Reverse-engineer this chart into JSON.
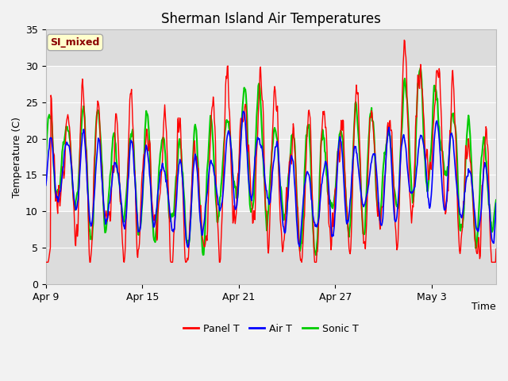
{
  "title": "Sherman Island Air Temperatures",
  "xlabel": "Time",
  "ylabel": "Temperature (C)",
  "annotation": "SI_mixed",
  "annotation_color": "#8B0000",
  "annotation_bg": "#FFFFCC",
  "annotation_border": "#AAAAAA",
  "ylim": [
    0,
    35
  ],
  "yticks": [
    0,
    5,
    10,
    15,
    20,
    25,
    30,
    35
  ],
  "xtick_labels": [
    "Apr 9",
    "Apr 15",
    "Apr 21",
    "Apr 27",
    "May 3"
  ],
  "line_colors": {
    "panel": "#FF0000",
    "air": "#0000FF",
    "sonic": "#00CC00"
  },
  "legend_labels": [
    "Panel T",
    "Air T",
    "Sonic T"
  ],
  "plot_bg": "#E8E8E8",
  "grid_color": "#FFFFFF",
  "title_fontsize": 12,
  "axis_fontsize": 9,
  "tick_fontsize": 9,
  "n_points": 800,
  "shaded_bg_low": 10,
  "shaded_bg_high": 30
}
